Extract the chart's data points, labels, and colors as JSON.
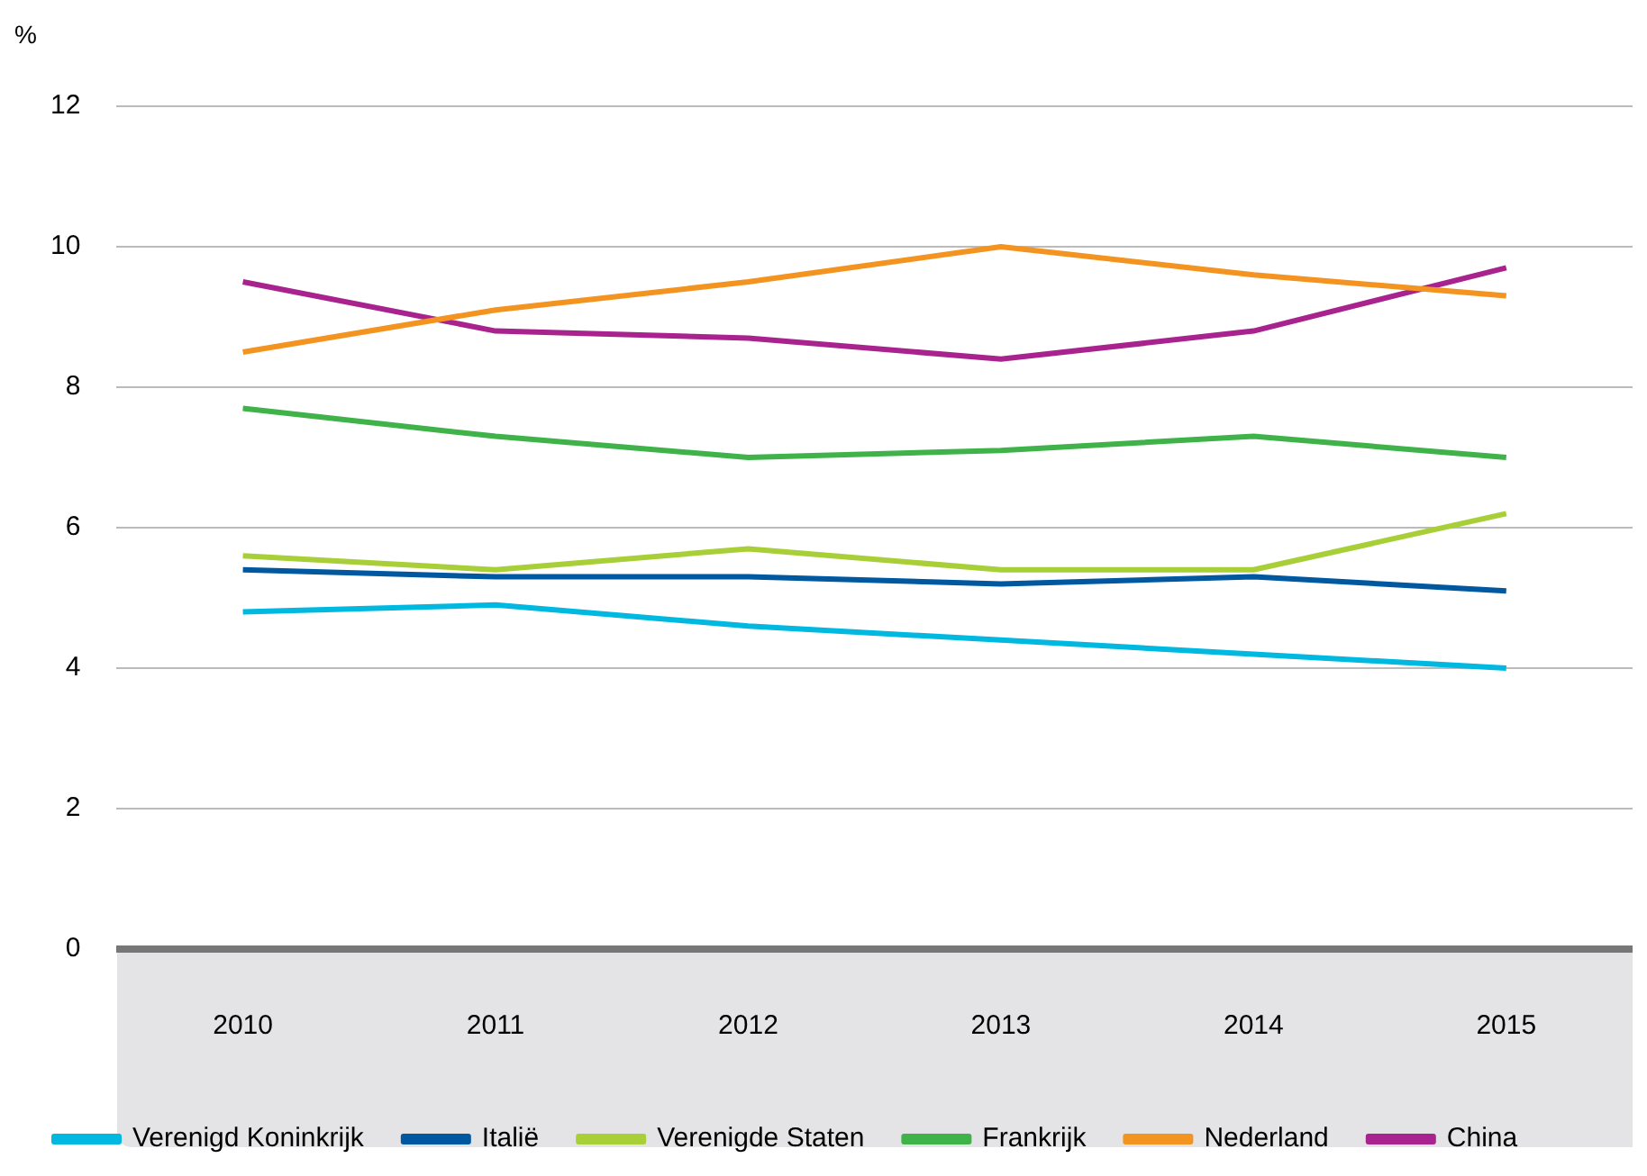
{
  "chart_data": {
    "type": "line",
    "ylabel": "%",
    "categories": [
      "2010",
      "2011",
      "2012",
      "2013",
      "2014",
      "2015"
    ],
    "series": [
      {
        "name": "Verenigd Koninkrijk",
        "color": "#00b8e0",
        "values": [
          4.8,
          4.9,
          4.6,
          4.4,
          4.2,
          4.0
        ]
      },
      {
        "name": "Italië",
        "color": "#0058a0",
        "values": [
          5.4,
          5.3,
          5.3,
          5.2,
          5.3,
          5.1
        ]
      },
      {
        "name": "Verenigde Staten",
        "color": "#a8cf38",
        "values": [
          5.6,
          5.4,
          5.7,
          5.4,
          5.4,
          6.2
        ]
      },
      {
        "name": "Frankrijk",
        "color": "#3fb34a",
        "values": [
          7.7,
          7.3,
          7.0,
          7.1,
          7.3,
          7.0
        ]
      },
      {
        "name": "Nederland",
        "color": "#f39320",
        "values": [
          8.5,
          9.1,
          9.5,
          10.0,
          9.6,
          9.3
        ]
      },
      {
        "name": "China",
        "color": "#a8238e",
        "values": [
          9.5,
          8.8,
          8.7,
          8.4,
          8.8,
          9.7
        ]
      }
    ],
    "ylim": [
      0,
      12
    ],
    "yticks": [
      0,
      2,
      4,
      6,
      8,
      10,
      12
    ],
    "grid": "y",
    "legend": "bottom",
    "marker": "none",
    "line_style": "solid"
  }
}
